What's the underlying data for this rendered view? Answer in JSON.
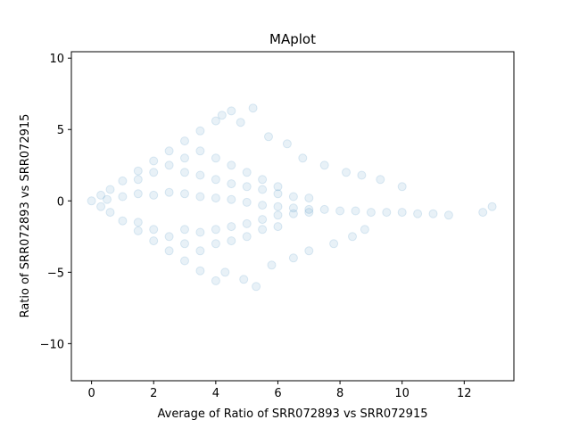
{
  "chart_data": {
    "type": "scatter",
    "title": "MAplot",
    "xlabel": "Average of Ratio of SRR072893 vs SRR072915",
    "ylabel": "Ratio of SRR072893 vs SRR072915",
    "xlim": [
      -0.65,
      13.6
    ],
    "ylim": [
      -12.6,
      10.45
    ],
    "xticks": [
      0,
      2,
      4,
      6,
      8,
      10,
      12
    ],
    "yticks": [
      -10,
      -5,
      0,
      5,
      10
    ],
    "grid": false,
    "legend": "none",
    "marker_color": "#1f77b4",
    "marker_alpha": 0.1,
    "series": [
      {
        "x": [
          0.0,
          0.3,
          0.6,
          1.0,
          1.5,
          2.0,
          2.5,
          3.0,
          3.5,
          4.0,
          4.5,
          0.3,
          0.6,
          1.0,
          1.5,
          2.0,
          2.5,
          3.0,
          3.5,
          4.0,
          0.5,
          1.0,
          1.5,
          2.0,
          2.5,
          3.0,
          3.5,
          4.0,
          4.5,
          5.0,
          5.5,
          6.0,
          6.5,
          7.0,
          7.5,
          8.0,
          8.5,
          9.0,
          9.5,
          10.0,
          10.5,
          11.0,
          11.5,
          1.5,
          2.0,
          2.5,
          3.0,
          3.5,
          4.0,
          4.5,
          5.0,
          5.5,
          6.0,
          6.5,
          7.0,
          1.5,
          2.0,
          2.5,
          3.0,
          3.5,
          4.0,
          4.5,
          5.0,
          5.5,
          6.0,
          6.5,
          7.0,
          3.0,
          3.5,
          4.0,
          4.5,
          5.0,
          5.5,
          6.0,
          3.0,
          3.5,
          4.0,
          4.5,
          5.0,
          5.5,
          6.0,
          4.2,
          4.8,
          5.2,
          5.7,
          6.3,
          6.8,
          7.5,
          8.2,
          8.7,
          9.3,
          10.0,
          4.3,
          4.9,
          5.3,
          5.8,
          6.5,
          7.0,
          7.8,
          8.4,
          8.8,
          12.6,
          12.9
        ],
        "y": [
          0.0,
          0.4,
          0.8,
          1.4,
          2.1,
          2.8,
          3.5,
          4.2,
          4.9,
          5.6,
          6.3,
          -0.4,
          -0.8,
          -1.4,
          -2.1,
          -2.8,
          -3.5,
          -4.2,
          -4.9,
          -5.6,
          0.1,
          0.3,
          0.5,
          0.4,
          0.6,
          0.5,
          0.3,
          0.2,
          0.1,
          -0.1,
          -0.3,
          -0.4,
          -0.5,
          -0.6,
          -0.6,
          -0.7,
          -0.7,
          -0.8,
          -0.8,
          -0.8,
          -0.9,
          -0.9,
          -1.0,
          1.5,
          2.0,
          2.5,
          2.0,
          1.8,
          1.5,
          1.2,
          1.0,
          0.8,
          0.5,
          0.3,
          0.2,
          -1.5,
          -2.0,
          -2.5,
          -2.0,
          -2.2,
          -2.0,
          -1.8,
          -1.6,
          -1.3,
          -1.0,
          -0.9,
          -0.8,
          3.0,
          3.5,
          3.0,
          2.5,
          2.0,
          1.5,
          1.0,
          -3.0,
          -3.5,
          -3.0,
          -2.8,
          -2.5,
          -2.0,
          -1.8,
          6.0,
          5.5,
          6.5,
          4.5,
          4.0,
          3.0,
          2.5,
          2.0,
          1.8,
          1.5,
          1.0,
          -5.0,
          -5.5,
          -6.0,
          -4.5,
          -4.0,
          -3.5,
          -3.0,
          -2.5,
          -2.0,
          -0.8,
          -0.4
        ]
      }
    ]
  }
}
